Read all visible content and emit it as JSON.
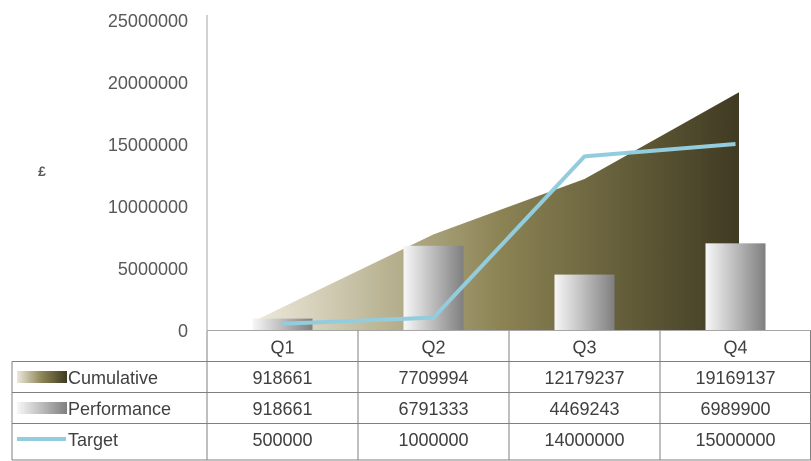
{
  "chart_data": {
    "type": "bar",
    "title": "",
    "ylabel": "£",
    "xlabel": "",
    "categories": [
      "Q1",
      "Q2",
      "Q3",
      "Q4"
    ],
    "ylim": [
      0,
      25000000
    ],
    "yticks": [
      "0",
      "5000000",
      "10000000",
      "15000000",
      "20000000",
      "25000000"
    ],
    "series": [
      {
        "name": "Cumulative",
        "kind": "area",
        "values": [
          918661,
          7709994,
          12179237,
          19169137
        ],
        "labels": [
          "918661",
          "7709994",
          "12179237",
          "19169137"
        ],
        "colors": [
          "#ece8da",
          "#8c8454",
          "#3f3a22"
        ]
      },
      {
        "name": "Performance",
        "kind": "bar",
        "values": [
          918661,
          6791333,
          4469243,
          6989900
        ],
        "labels": [
          "918661",
          "6791333",
          "4469243",
          "6989900"
        ],
        "colors": [
          "#f2f2f2",
          "#7f7f7f"
        ]
      },
      {
        "name": "Target",
        "kind": "line",
        "values": [
          500000,
          1000000,
          14000000,
          15000000
        ],
        "labels": [
          "500000",
          "1000000",
          "14000000",
          "15000000"
        ],
        "color": "#93cddd"
      }
    ],
    "grid": false,
    "legend": "data-table"
  }
}
